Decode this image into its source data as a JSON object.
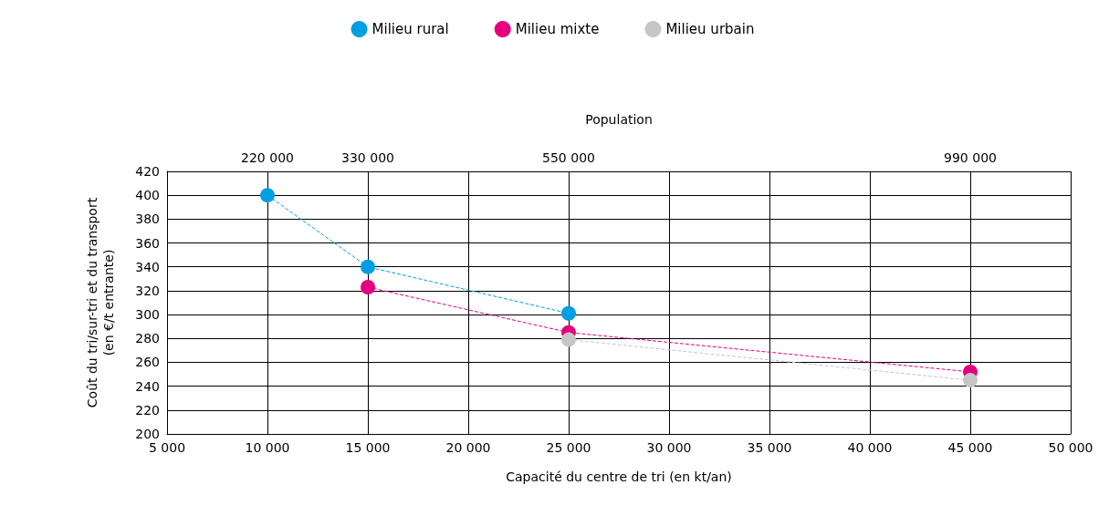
{
  "chart_data": {
    "type": "line",
    "xlabel": "Capacité du centre de tri (en kt/an)",
    "ylabel": "Coût du tri/sur-tri et du transport\n(en €/t entrante)",
    "x2label": "Population",
    "xlim": [
      5000,
      50000
    ],
    "xticks": [
      {
        "value": 5000,
        "label": "5 000"
      },
      {
        "value": 10000,
        "label": "10 000"
      },
      {
        "value": 15000,
        "label": "15 000"
      },
      {
        "value": 20000,
        "label": "20 000"
      },
      {
        "value": 25000,
        "label": "25 000"
      },
      {
        "value": 30000,
        "label": "30 000"
      },
      {
        "value": 35000,
        "label": "35 000"
      },
      {
        "value": 40000,
        "label": "40 000"
      },
      {
        "value": 45000,
        "label": "45 000"
      },
      {
        "value": 50000,
        "label": "50 000"
      }
    ],
    "x2lim": [
      110000,
      1100000
    ],
    "x2ticks": [
      {
        "value": 220000,
        "label": "220 000"
      },
      {
        "value": 330000,
        "label": "330 000"
      },
      {
        "value": 550000,
        "label": "550 000"
      },
      {
        "value": 990000,
        "label": "990 000"
      }
    ],
    "ylim": [
      200,
      420
    ],
    "yticks": [
      200,
      220,
      240,
      260,
      280,
      300,
      320,
      340,
      360,
      380,
      400,
      420
    ],
    "grid": true,
    "legend": "top",
    "marker": "circle",
    "line_style": "dashed",
    "series": [
      {
        "name": "Milieu rural",
        "color": "#009fe3",
        "x": [
          10000,
          15000,
          25000
        ],
        "values": [
          400,
          340,
          301
        ]
      },
      {
        "name": "Milieu mixte",
        "color": "#e6007e",
        "x": [
          15000,
          25000,
          45000
        ],
        "values": [
          323,
          285,
          252
        ]
      },
      {
        "name": "Milieu urbain",
        "color": "#c6c6c6",
        "x": [
          25000,
          45000
        ],
        "values": [
          279,
          245
        ]
      }
    ]
  }
}
